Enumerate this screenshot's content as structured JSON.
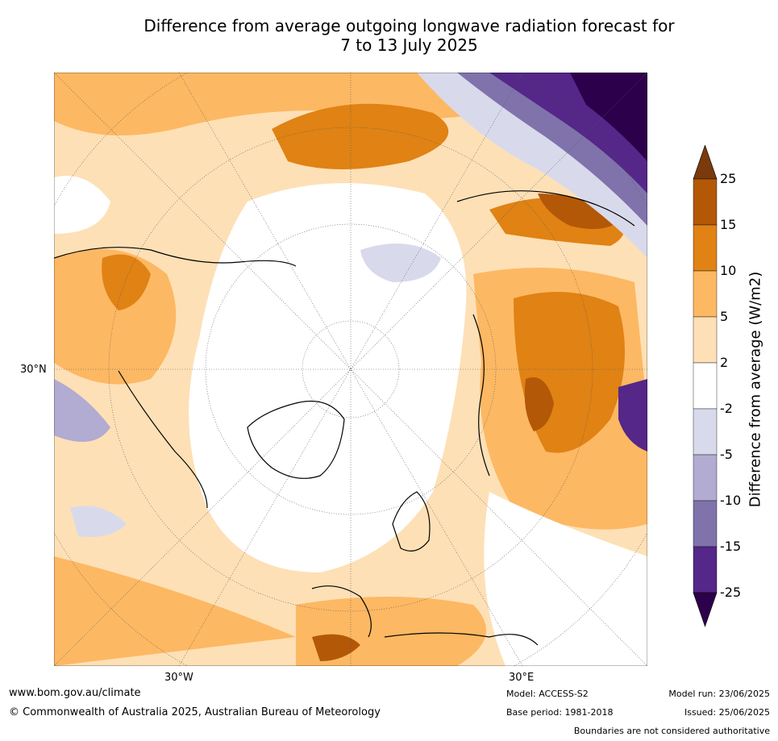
{
  "title_line1": "Difference from average outgoing longwave radiation forecast for",
  "title_line2": "7 to 13 July 2025",
  "colorbar": {
    "title": "Difference from average (W/m2)",
    "levels": [
      "25",
      "15",
      "10",
      "5",
      "2",
      "-2",
      "-5",
      "-10",
      "-15",
      "-25"
    ],
    "colors": [
      "#7a3a0b",
      "#b35806",
      "#e08214",
      "#fdb863",
      "#fee0b6",
      "#ffffff",
      "#d8daeb",
      "#b2abd2",
      "#8073ac",
      "#542788",
      "#2d004b"
    ]
  },
  "map_labels": {
    "lat_30N": "30°N",
    "lon_30W": "30°W",
    "lon_30E": "30°E"
  },
  "footer": {
    "url": "www.bom.gov.au/climate",
    "copyright": "© Commonwealth of Australia 2025, Australian Bureau of Meteorology",
    "model": "Model: ACCESS-S2",
    "base_period": "Base period: 1981-2018",
    "model_run": "Model run: 23/06/2025",
    "issued": "Issued: 25/06/2025",
    "disclaimer": "Boundaries are not considered authoritative"
  }
}
